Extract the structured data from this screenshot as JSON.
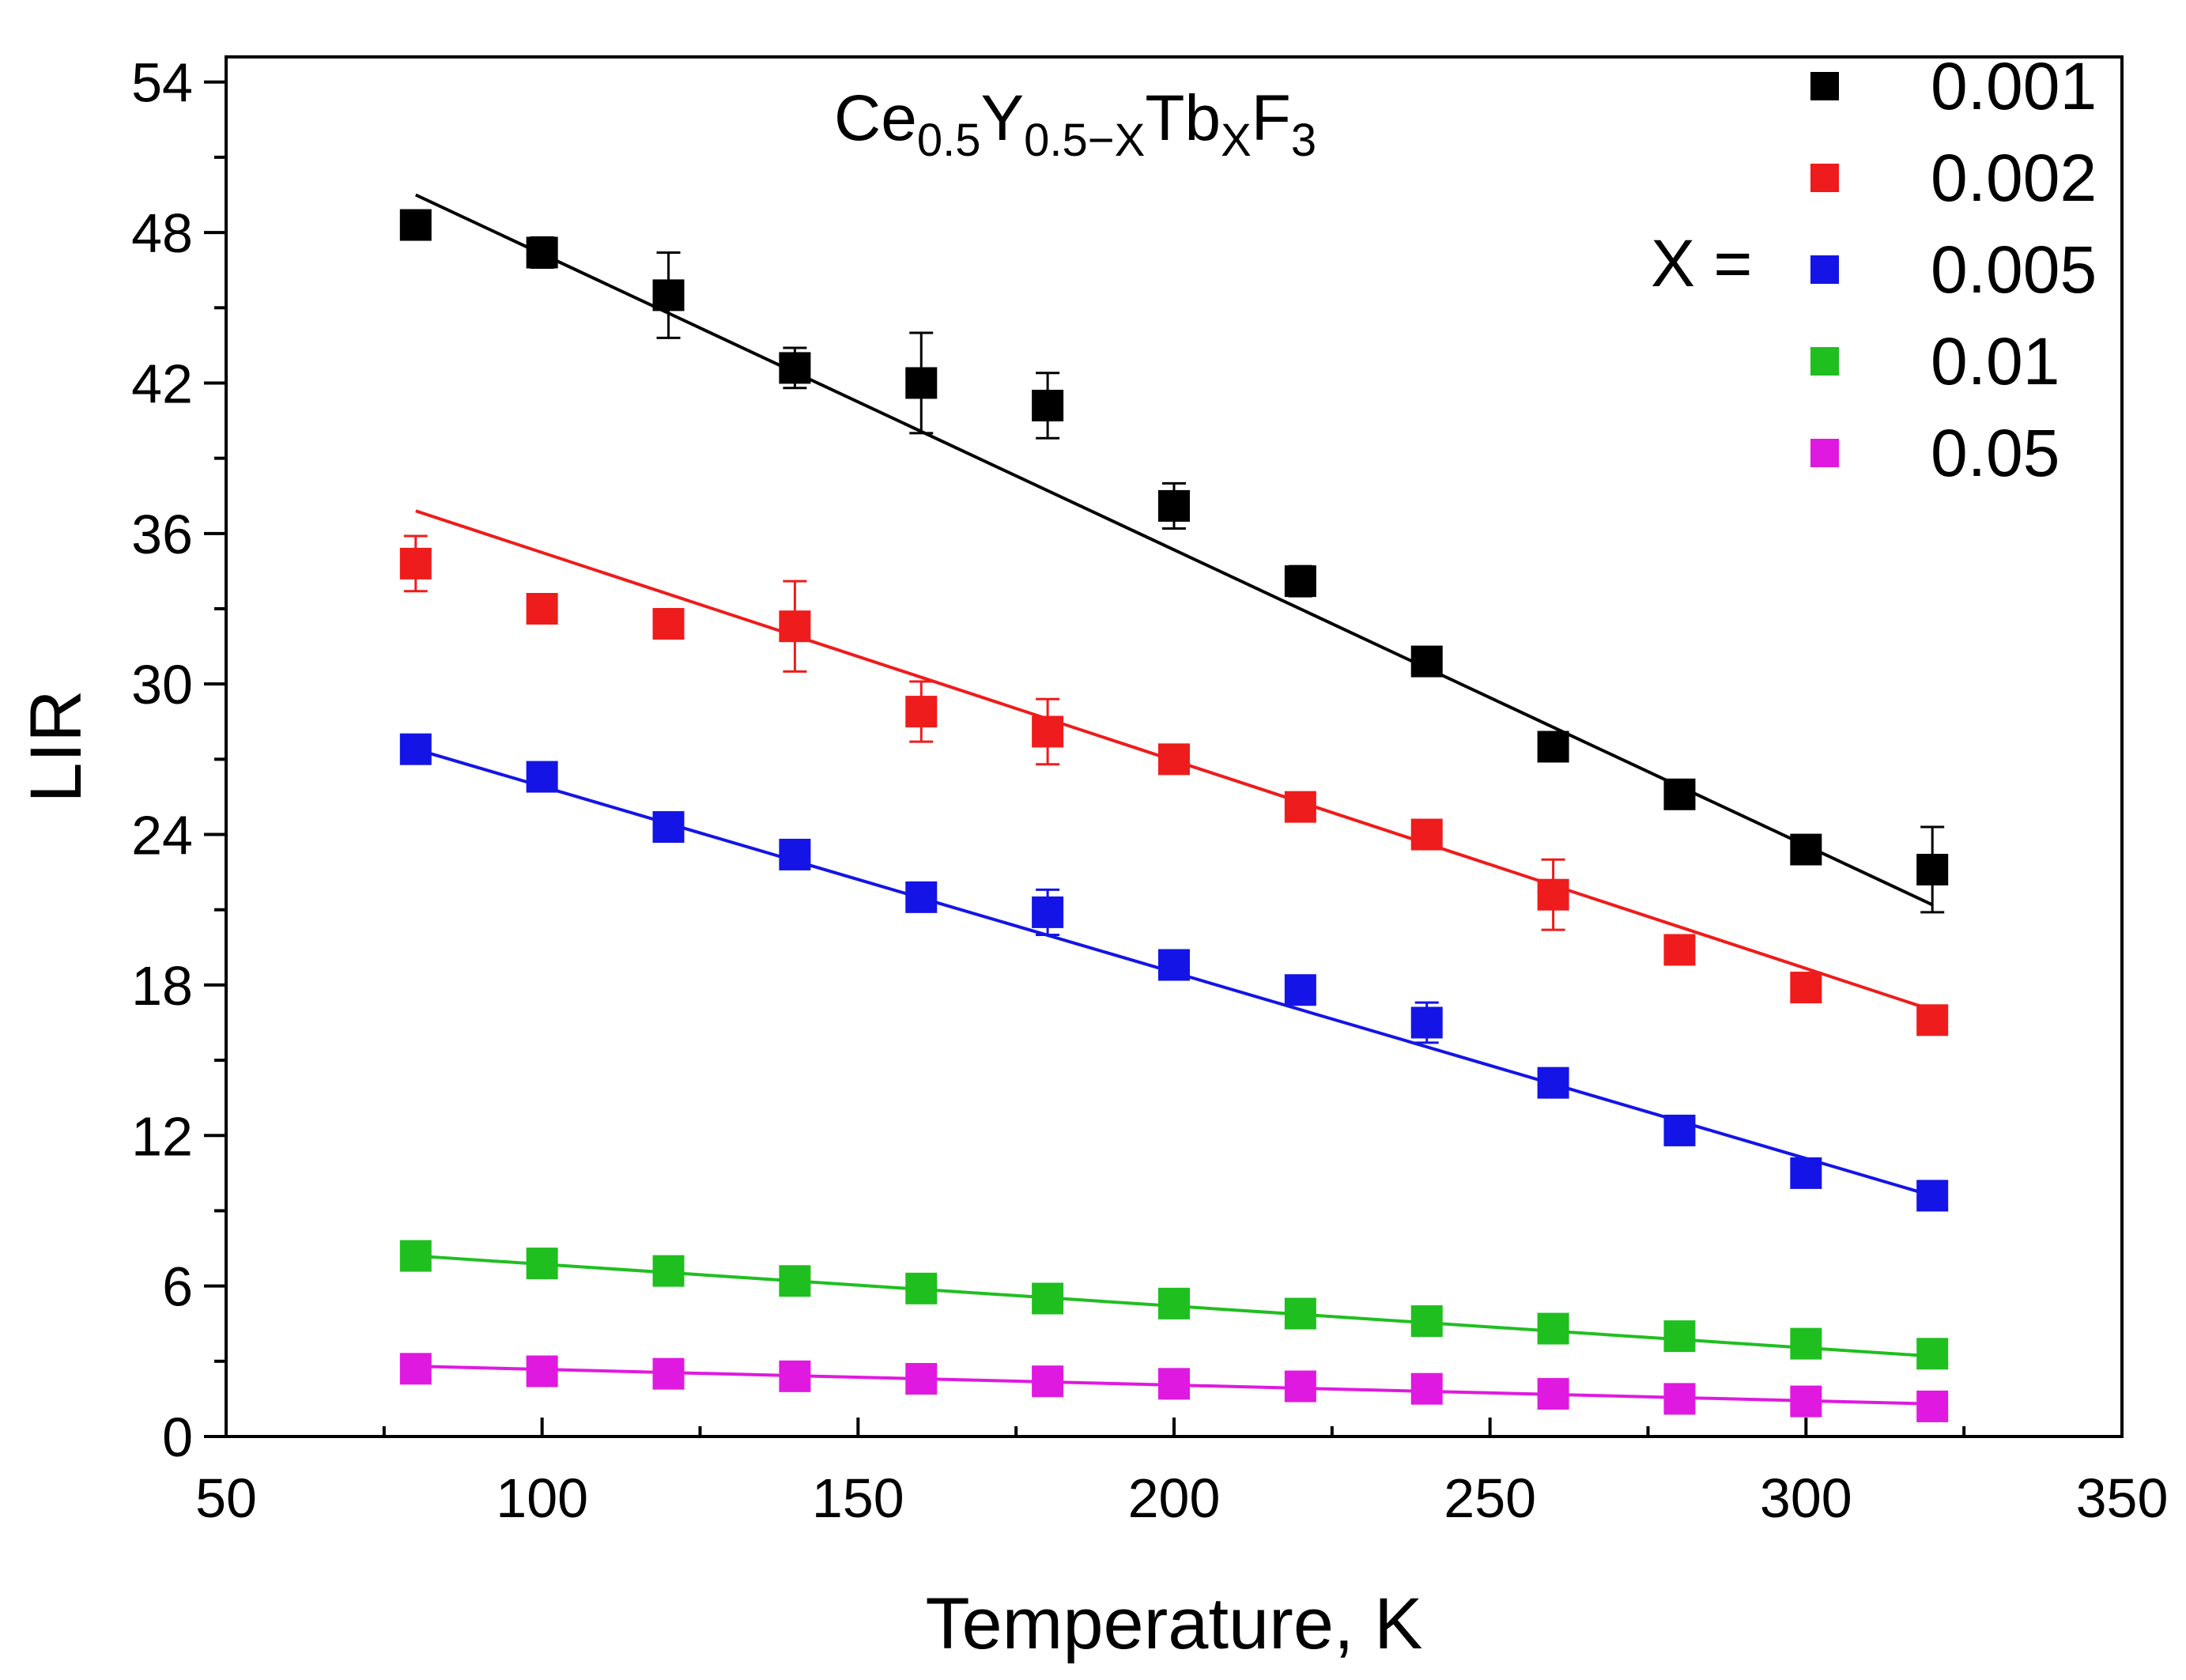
{
  "chart_data": {
    "type": "scatter",
    "title_parts": {
      "base1": "Ce",
      "sub1": "0.5",
      "base2": "Y",
      "sub2": "0.5−X",
      "base3": "Tb",
      "sub3": "X",
      "base4": "F",
      "sub4": "3"
    },
    "xlabel": "Temperature, K",
    "ylabel": "LIR",
    "xlim": [
      50,
      350
    ],
    "ylim": [
      0,
      55
    ],
    "xticks": [
      50,
      100,
      150,
      200,
      250,
      300,
      350
    ],
    "yticks": [
      0,
      6,
      12,
      18,
      24,
      30,
      36,
      42,
      48,
      54
    ],
    "legend_title": "X =",
    "legend_position": "top-right",
    "grid": false,
    "x": [
      80,
      100,
      120,
      140,
      160,
      180,
      200,
      220,
      240,
      260,
      280,
      300,
      320
    ],
    "series": [
      {
        "name": "0.001",
        "color": "#000000",
        "values": [
          48.3,
          47.2,
          45.5,
          42.6,
          42.0,
          41.1,
          37.1,
          34.1,
          30.9,
          27.5,
          25.6,
          23.4,
          22.6
        ],
        "errors": [
          0.5,
          0.6,
          1.7,
          0.8,
          2.0,
          1.3,
          0.9,
          0.6,
          0.5,
          0.5,
          0.5,
          0.4,
          1.7
        ],
        "fit": [
          49.5,
          21.2
        ]
      },
      {
        "name": "0.002",
        "color": "#ee1c1c",
        "values": [
          34.8,
          33.0,
          32.4,
          32.3,
          28.9,
          28.1,
          27.0,
          25.1,
          24.0,
          21.6,
          19.4,
          17.9,
          16.6
        ],
        "errors": [
          1.1,
          0.4,
          0.4,
          1.8,
          1.2,
          1.3,
          0.4,
          0.3,
          0.3,
          1.4,
          0.3,
          0.3,
          0.3
        ],
        "fit": [
          36.9,
          17.0
        ]
      },
      {
        "name": "0.005",
        "color": "#1414e6",
        "values": [
          27.4,
          26.3,
          24.3,
          23.2,
          21.5,
          20.9,
          18.8,
          17.8,
          16.5,
          14.1,
          12.2,
          10.5,
          9.6
        ],
        "errors": [
          0.3,
          0.3,
          0.3,
          0.3,
          0.3,
          0.9,
          0.3,
          0.3,
          0.8,
          0.3,
          0.3,
          0.3,
          0.3
        ],
        "fit": [
          27.4,
          9.6
        ]
      },
      {
        "name": "0.01",
        "color": "#1fbf1f",
        "values": [
          7.2,
          6.9,
          6.6,
          6.2,
          5.9,
          5.5,
          5.3,
          4.9,
          4.6,
          4.3,
          4.0,
          3.7,
          3.3
        ],
        "errors": [
          0.2,
          0.2,
          0.2,
          0.2,
          0.2,
          0.2,
          0.2,
          0.2,
          0.2,
          0.2,
          0.2,
          0.2,
          0.2
        ],
        "fit": [
          7.2,
          3.2
        ]
      },
      {
        "name": "0.05",
        "color": "#e019e0",
        "values": [
          2.7,
          2.6,
          2.5,
          2.4,
          2.3,
          2.2,
          2.1,
          2.0,
          1.9,
          1.7,
          1.5,
          1.4,
          1.2
        ],
        "errors": [
          0.1,
          0.1,
          0.1,
          0.1,
          0.1,
          0.1,
          0.1,
          0.1,
          0.1,
          0.1,
          0.1,
          0.1,
          0.1
        ],
        "fit": [
          2.8,
          1.3
        ]
      }
    ]
  }
}
